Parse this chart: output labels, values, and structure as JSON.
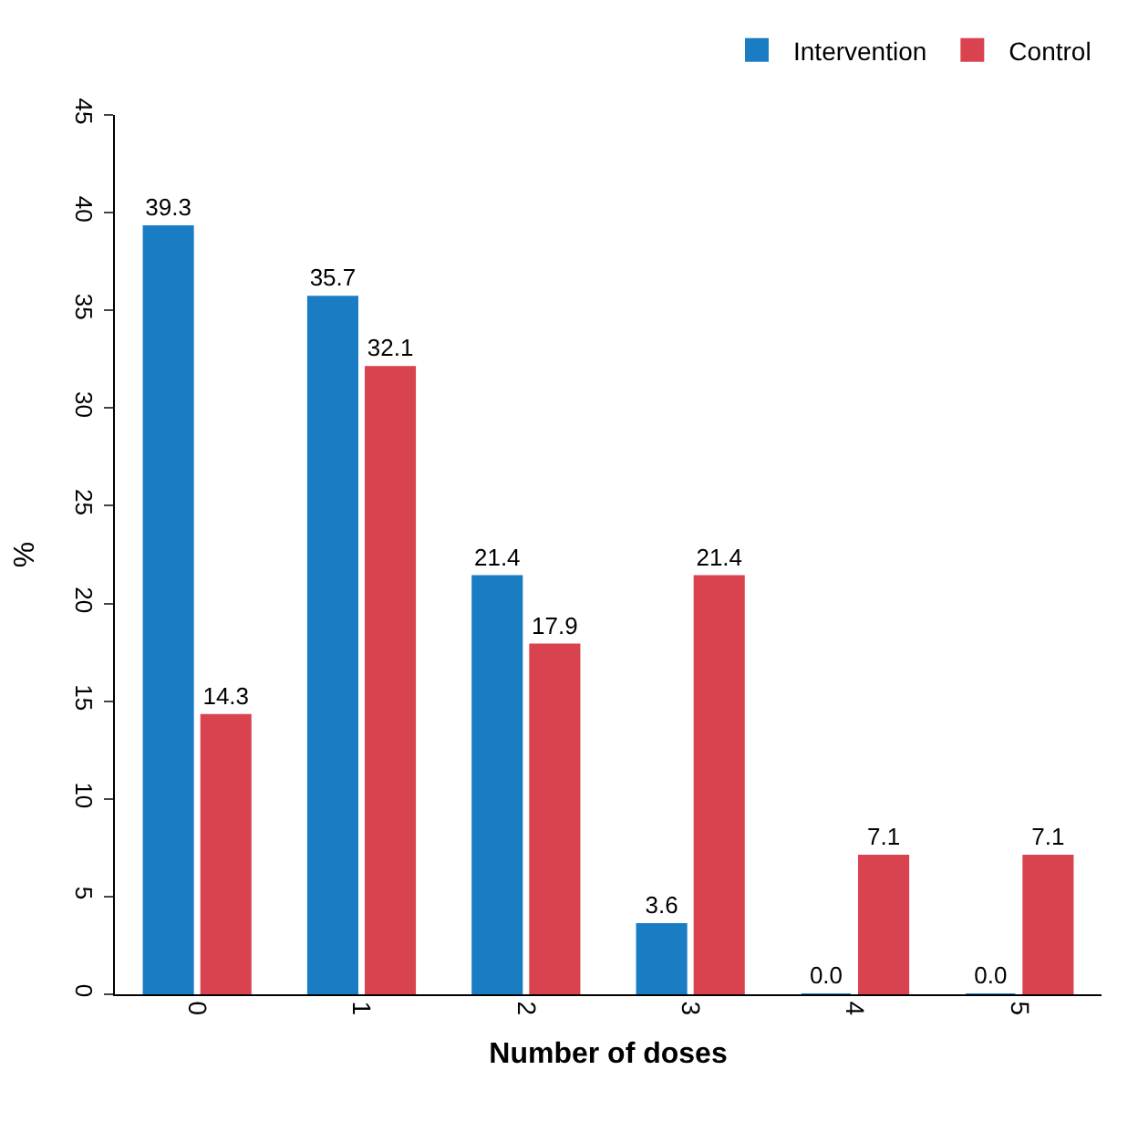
{
  "chart_data": {
    "type": "bar",
    "xlabel": "Number of doses",
    "ylabel": "%",
    "categories": [
      "0",
      "1",
      "2",
      "3",
      "4",
      "5"
    ],
    "series": [
      {
        "name": "Intervention",
        "color": "#1a7dc4",
        "values": [
          39.3,
          35.7,
          21.4,
          3.6,
          0.0,
          0.0
        ],
        "value_labels": [
          "39.3",
          "35.7",
          "21.4",
          "3.6",
          "0.0",
          "0.0"
        ]
      },
      {
        "name": "Control",
        "color": "#d9434f",
        "values": [
          14.3,
          32.1,
          17.9,
          21.4,
          7.1,
          7.1
        ],
        "value_labels": [
          "14.3",
          "32.1",
          "17.9",
          "21.4",
          "7.1",
          "7.1"
        ]
      }
    ],
    "ylim": [
      0,
      45
    ],
    "yticks": [
      0,
      5,
      10,
      15,
      20,
      25,
      30,
      35,
      40,
      45
    ],
    "legend": "top right"
  }
}
